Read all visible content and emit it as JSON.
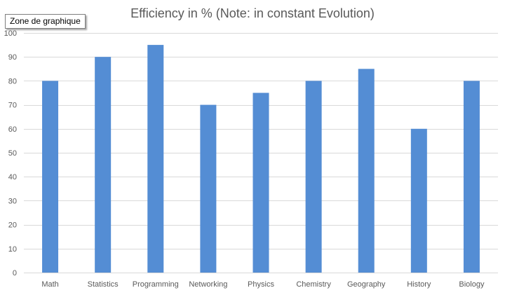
{
  "tooltip": {
    "label": "Zone de graphique"
  },
  "colors": {
    "bar": "#548DD4",
    "grid": "#D9D9D9",
    "axis_text": "#595959",
    "title": "#595959"
  },
  "chart_data": {
    "type": "bar",
    "title": "Efficiency in % (Note: in constant Evolution)",
    "xlabel": "",
    "ylabel": "",
    "ylim": [
      0,
      100
    ],
    "yticks": [
      0,
      10,
      20,
      30,
      40,
      50,
      60,
      70,
      80,
      90,
      100
    ],
    "grid": true,
    "legend": "none",
    "categories": [
      "Math",
      "Statistics",
      "Programming",
      "Networking",
      "Physics",
      "Chemistry",
      "Geography",
      "History",
      "Biology"
    ],
    "values": [
      80,
      90,
      95,
      70,
      75,
      80,
      85,
      60,
      80
    ]
  }
}
